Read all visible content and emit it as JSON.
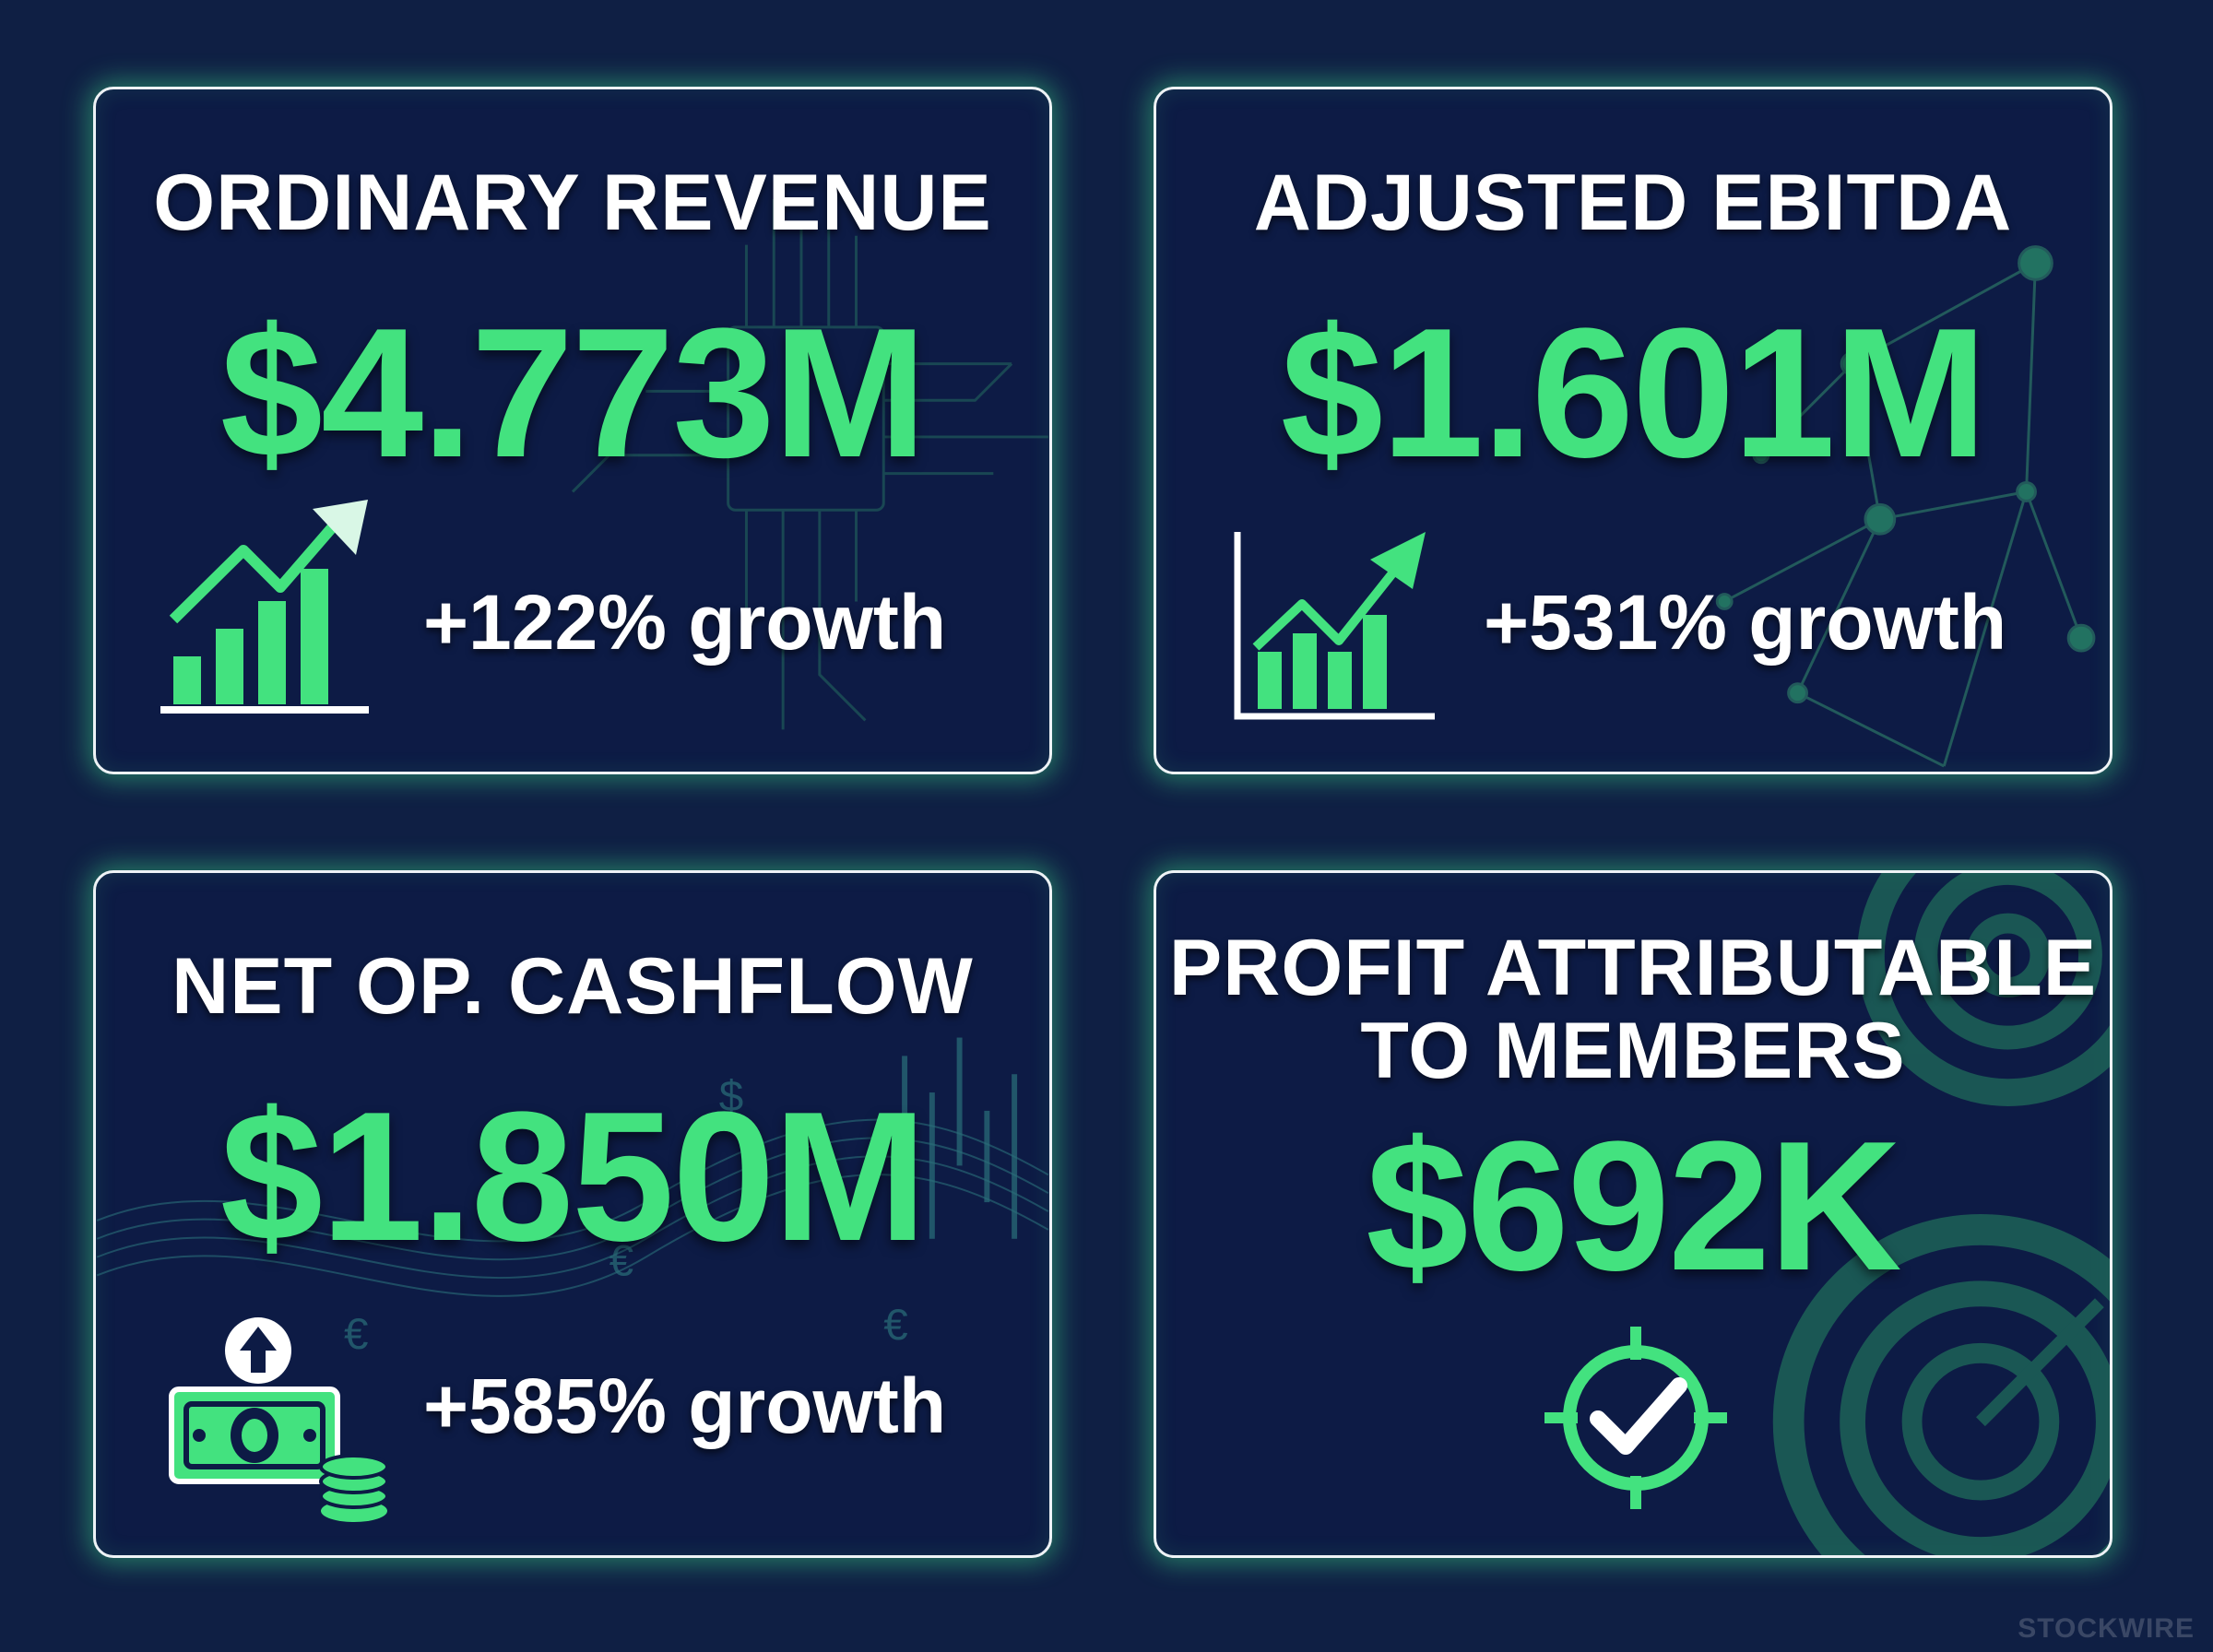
{
  "cards": [
    {
      "title": "ORDINARY REVENUE",
      "value": "$4.773M",
      "growth": "+122% growth",
      "icon": "bar-chart-growth-icon"
    },
    {
      "title": "ADJUSTED EBITDA",
      "value": "$1.601M",
      "growth": "+531% growth",
      "icon": "line-chart-growth-icon"
    },
    {
      "title": "NET OP. CASHFLOW",
      "value": "$1.850M",
      "growth": "+585% growth",
      "icon": "cash-stack-icon"
    },
    {
      "title_line1": "PROFIT ATTRIBUTABLE",
      "title_line2": "TO MEMBERS",
      "value": "$692K",
      "icon": "target-check-icon"
    }
  ],
  "watermark": "STOCKWIRE",
  "colors": {
    "background": "#0f1f44",
    "card": "#0d1b45",
    "accent": "#43e27f",
    "border": "#eef3f6"
  }
}
